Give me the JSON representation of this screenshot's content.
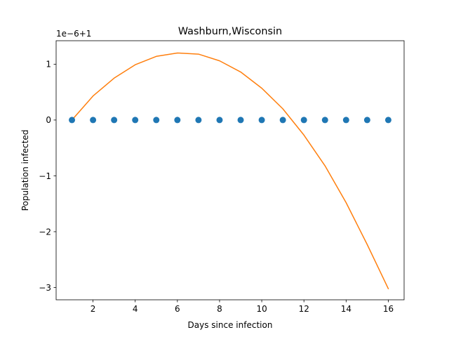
{
  "chart_data": {
    "type": "scatter+line",
    "title": "Washburn,Wisconsin",
    "xlabel": "Days since infection",
    "ylabel": "Population infected",
    "offset_label": "1e−6+1",
    "xlim": [
      0.25,
      16.75
    ],
    "ylim": [
      -3.22,
      1.42
    ],
    "x_ticks": [
      2,
      4,
      6,
      8,
      10,
      12,
      14,
      16
    ],
    "x_tick_labels": [
      "2",
      "4",
      "6",
      "8",
      "10",
      "12",
      "14",
      "16"
    ],
    "y_ticks": [
      -3,
      -2,
      -1,
      0,
      1
    ],
    "y_tick_labels": [
      "−3",
      "−2",
      "−1",
      "0",
      "1"
    ],
    "grid": false,
    "series": [
      {
        "kind": "scatter",
        "color": "#1f77b4",
        "x": [
          1,
          2,
          3,
          4,
          5,
          6,
          7,
          8,
          9,
          10,
          11,
          12,
          13,
          14,
          15,
          16
        ],
        "y": [
          0,
          0,
          0,
          0,
          0,
          0,
          0,
          0,
          0,
          0,
          0,
          0,
          0,
          0,
          0,
          0
        ]
      },
      {
        "kind": "line",
        "color": "#ff7f0e",
        "x": [
          1,
          2,
          3,
          4,
          5,
          6,
          7,
          8,
          9,
          10,
          11,
          12,
          13,
          14,
          15,
          16
        ],
        "y": [
          0.0,
          0.43,
          0.75,
          0.99,
          1.14,
          1.2,
          1.18,
          1.06,
          0.86,
          0.57,
          0.2,
          -0.27,
          -0.82,
          -1.48,
          -2.23,
          -3.02
        ]
      }
    ]
  }
}
